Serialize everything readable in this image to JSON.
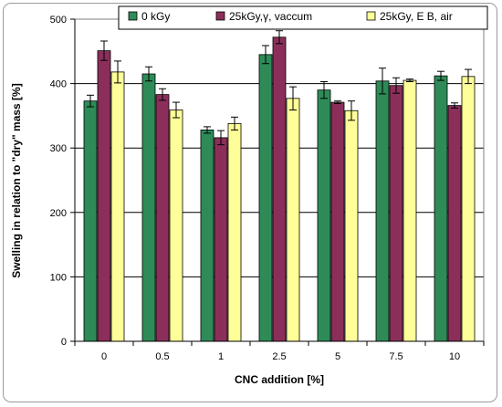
{
  "chart_data": {
    "type": "bar",
    "xlabel": "CNC addition [%]",
    "ylabel": "Swelling in relation to \"dry\" mass [%]",
    "ylim": [
      0,
      500
    ],
    "yticks": [
      0,
      100,
      200,
      300,
      400,
      500
    ],
    "categories": [
      "0",
      "0.5",
      "1",
      "2.5",
      "5",
      "7.5",
      "10"
    ],
    "grid": "horizontal",
    "legend_position": "top",
    "series": [
      {
        "name": "0 kGy",
        "color": "#2e8b57",
        "values": [
          373,
          415,
          328,
          445,
          390,
          404,
          412
        ],
        "errors": [
          9,
          11,
          5,
          14,
          13,
          20,
          7
        ]
      },
      {
        "name": "25kGy,γ, vaccum",
        "color": "#8b2f5a",
        "values": [
          451,
          383,
          316,
          472,
          371,
          397,
          366
        ],
        "errors": [
          15,
          9,
          11,
          10,
          2,
          12,
          4
        ]
      },
      {
        "name": "25kGy, E B, air",
        "color": "#ffff99",
        "values": [
          418,
          359,
          338,
          377,
          358,
          405,
          411
        ],
        "errors": [
          17,
          12,
          10,
          18,
          15,
          2,
          11
        ]
      }
    ]
  }
}
